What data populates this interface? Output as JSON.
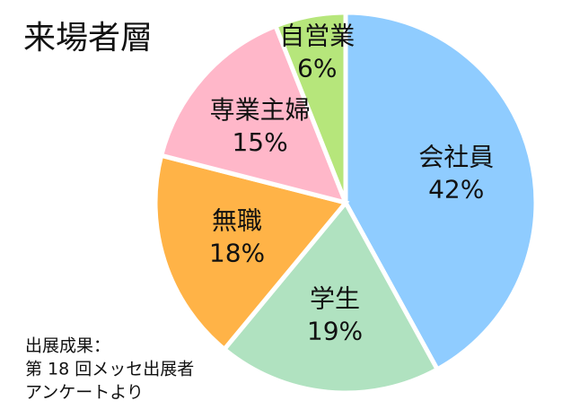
{
  "chart_data": {
    "type": "pie",
    "title": "来場者層",
    "categories": [
      "会社員",
      "学生",
      "無職",
      "専業主婦",
      "自営業"
    ],
    "values": [
      42,
      19,
      18,
      15,
      6
    ],
    "value_labels": [
      "42%",
      "19%",
      "18%",
      "15%",
      "6%"
    ],
    "colors": [
      "#8fccff",
      "#b0e2c0",
      "#ffb347",
      "#ffb7c9",
      "#b6e67b"
    ],
    "note": [
      "出展成果：",
      "第 18 回メッセ出展者",
      "アンケートより"
    ]
  }
}
